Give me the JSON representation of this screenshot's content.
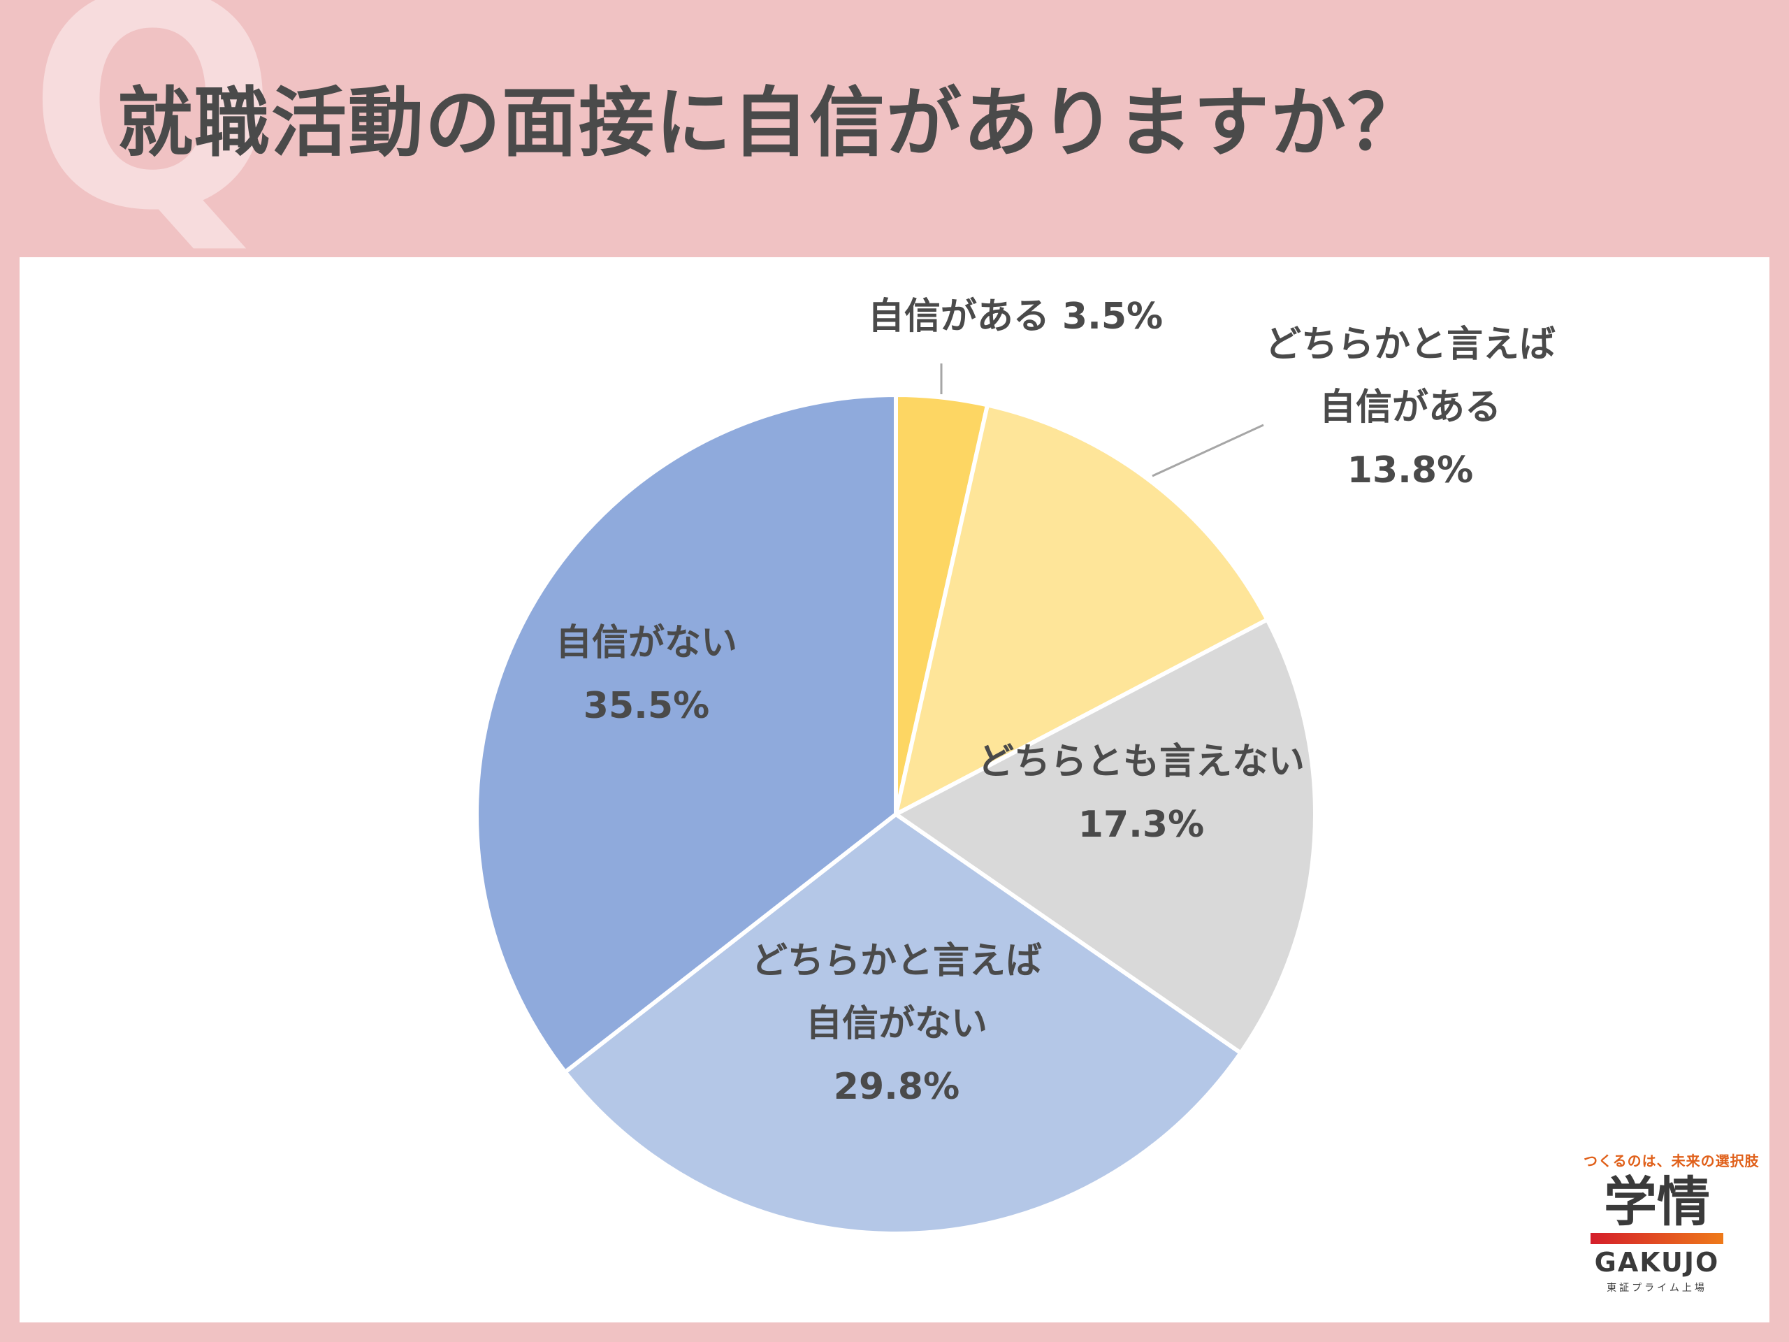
{
  "header": {
    "q_mark": "Q",
    "title": "就職活動の面接に自信がありますか？"
  },
  "chart_data": {
    "type": "pie",
    "title": "就職活動の面接に自信がありますか？",
    "start_angle_deg": 0,
    "direction": "clockwise",
    "slices": [
      {
        "label_lines": [
          "自信がある 3.5%"
        ],
        "value": 3.5,
        "color": "#fdd663",
        "label_outside": true
      },
      {
        "label_lines": [
          "どちらかと言えば",
          "自信がある",
          "13.8%"
        ],
        "value": 13.8,
        "color": "#fee599",
        "label_outside": true
      },
      {
        "label_lines": [
          "どちらとも言えない",
          "17.3%"
        ],
        "value": 17.3,
        "color": "#d9d9d9",
        "label_outside": false
      },
      {
        "label_lines": [
          "どちらかと言えば",
          "自信がない",
          "29.8%"
        ],
        "value": 29.8,
        "color": "#b4c7e7",
        "label_outside": false
      },
      {
        "label_lines": [
          "自信がない",
          "35.5%"
        ],
        "value": 35.5,
        "color": "#8faadc",
        "label_outside": false
      }
    ]
  },
  "logo": {
    "tagline": "つくるのは、未来の選択肢",
    "kanji": "学情",
    "name": "GAKUJO",
    "sub": "東証プライム上場",
    "bar_colors": [
      "#d41e2a",
      "#ee7a1a"
    ]
  }
}
